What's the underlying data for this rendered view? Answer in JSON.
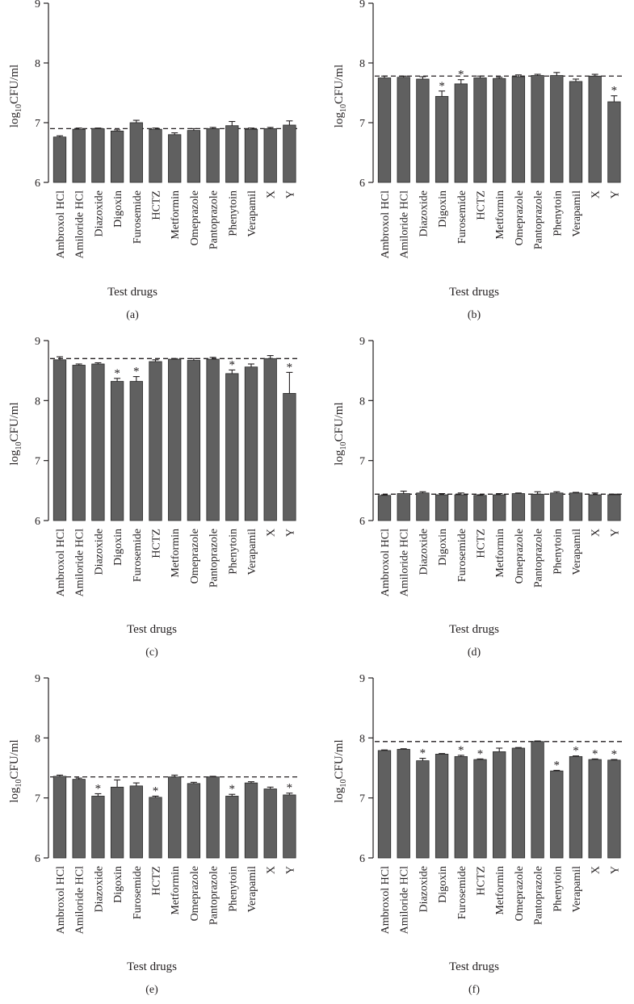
{
  "figure": {
    "categories": [
      "Ambroxol HCl",
      "Amiloride HCl",
      "Diazoxide",
      "Digoxin",
      "Furosemide",
      "HCTZ",
      "Metformin",
      "Omeprazole",
      "Pantoprazole",
      "Phenytoin",
      "Verapamil",
      "X",
      "Y"
    ],
    "ylabel_prefix": "log",
    "ylabel_sub": "10",
    "ylabel_suffix": "CFU/ml",
    "xlabel": "Test drugs",
    "significance_marker": "*",
    "colors": {
      "bar": "#606060",
      "axis": "#231f20",
      "reference_line": "#231f20"
    }
  },
  "chart_data": [
    {
      "type": "bar",
      "label": "(a)",
      "title": "",
      "xlabel": "Test drugs",
      "ylabel": "log10 CFU/ml",
      "ylim": [
        6,
        9
      ],
      "yticks": [
        6,
        7,
        8,
        9
      ],
      "reference_line": 6.9,
      "values": [
        6.76,
        6.89,
        6.9,
        6.86,
        7.0,
        6.89,
        6.8,
        6.87,
        6.9,
        6.95,
        6.89,
        6.9,
        6.96
      ],
      "errors": [
        0.02,
        0.02,
        0.01,
        0.02,
        0.04,
        0.02,
        0.03,
        0.03,
        0.02,
        0.07,
        0.02,
        0.02,
        0.07
      ],
      "significant": [
        false,
        false,
        false,
        false,
        false,
        false,
        false,
        false,
        false,
        false,
        false,
        false,
        false
      ]
    },
    {
      "type": "bar",
      "label": "(b)",
      "title": "",
      "xlabel": "Test drugs",
      "ylabel": "log10 CFU/ml",
      "ylim": [
        6,
        9
      ],
      "yticks": [
        6,
        7,
        8,
        9
      ],
      "reference_line": 7.78,
      "values": [
        7.75,
        7.76,
        7.73,
        7.44,
        7.65,
        7.75,
        7.74,
        7.77,
        7.79,
        7.79,
        7.69,
        7.78,
        7.35
      ],
      "errors": [
        0.03,
        0.02,
        0.04,
        0.09,
        0.07,
        0.03,
        0.02,
        0.03,
        0.02,
        0.05,
        0.04,
        0.03,
        0.1
      ],
      "significant": [
        false,
        false,
        false,
        true,
        true,
        false,
        false,
        false,
        false,
        false,
        false,
        false,
        true
      ]
    },
    {
      "type": "bar",
      "label": "(c)",
      "title": "",
      "xlabel": "Test drugs",
      "ylabel": "log10 CFU/ml",
      "ylim": [
        6,
        9
      ],
      "yticks": [
        6,
        7,
        8,
        9
      ],
      "reference_line": 8.7,
      "values": [
        8.68,
        8.59,
        8.61,
        8.32,
        8.32,
        8.65,
        8.69,
        8.67,
        8.69,
        8.45,
        8.56,
        8.7,
        8.12
      ],
      "errors": [
        0.05,
        0.02,
        0.02,
        0.05,
        0.08,
        0.03,
        0.01,
        0.03,
        0.03,
        0.06,
        0.05,
        0.05,
        0.35
      ],
      "significant": [
        false,
        false,
        false,
        true,
        true,
        false,
        false,
        false,
        false,
        true,
        false,
        false,
        true
      ]
    },
    {
      "type": "bar",
      "label": "(d)",
      "title": "",
      "xlabel": "Test drugs",
      "ylabel": "log10 CFU/ml",
      "ylim": [
        6,
        9
      ],
      "yticks": [
        6,
        7,
        8,
        9
      ],
      "reference_line": 6.44,
      "values": [
        6.42,
        6.45,
        6.46,
        6.43,
        6.43,
        6.42,
        6.43,
        6.45,
        6.44,
        6.46,
        6.46,
        6.43,
        6.43
      ],
      "errors": [
        0.01,
        0.04,
        0.02,
        0.02,
        0.03,
        0.01,
        0.02,
        0.01,
        0.04,
        0.02,
        0.01,
        0.03,
        0.01
      ],
      "significant": [
        false,
        false,
        false,
        false,
        false,
        false,
        false,
        false,
        false,
        false,
        false,
        false,
        false
      ]
    },
    {
      "type": "bar",
      "label": "(e)",
      "title": "",
      "xlabel": "Test drugs",
      "ylabel": "log10 CFU/ml",
      "ylim": [
        6,
        9
      ],
      "yticks": [
        6,
        7,
        8,
        9
      ],
      "reference_line": 7.35,
      "values": [
        7.36,
        7.31,
        7.03,
        7.18,
        7.2,
        7.01,
        7.35,
        7.24,
        7.35,
        7.03,
        7.25,
        7.15,
        7.05
      ],
      "errors": [
        0.02,
        0.02,
        0.04,
        0.12,
        0.05,
        0.02,
        0.03,
        0.02,
        0.01,
        0.03,
        0.02,
        0.03,
        0.03
      ],
      "significant": [
        false,
        false,
        true,
        false,
        false,
        true,
        false,
        false,
        false,
        true,
        false,
        false,
        true
      ]
    },
    {
      "type": "bar",
      "label": "(f)",
      "title": "",
      "xlabel": "Test drugs",
      "ylabel": "log10 CFU/ml",
      "ylim": [
        6,
        9
      ],
      "yticks": [
        6,
        7,
        8,
        9
      ],
      "reference_line": 7.94,
      "values": [
        7.79,
        7.81,
        7.62,
        7.73,
        7.69,
        7.64,
        7.77,
        7.83,
        7.94,
        7.45,
        7.69,
        7.64,
        7.63
      ],
      "errors": [
        0.01,
        0.01,
        0.04,
        0.01,
        0.02,
        0.01,
        0.06,
        0.01,
        0.01,
        0.01,
        0.01,
        0.01,
        0.01
      ],
      "significant": [
        false,
        false,
        true,
        false,
        true,
        true,
        false,
        false,
        false,
        true,
        true,
        true,
        true
      ]
    }
  ]
}
